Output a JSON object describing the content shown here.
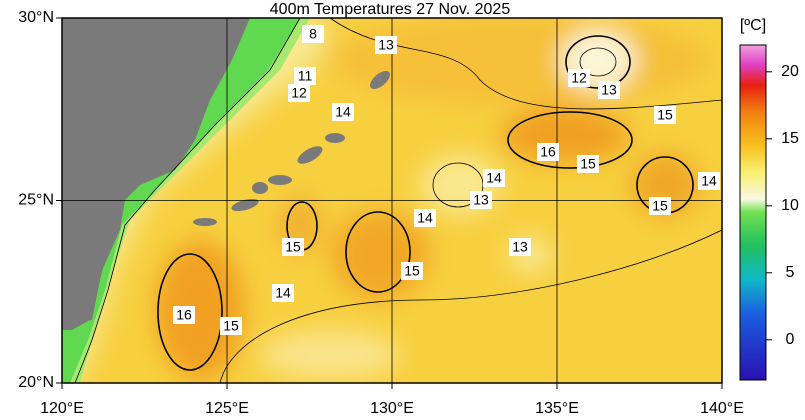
{
  "title": "400m Temperatures  27 Nov. 2025",
  "map": {
    "lonlim": [
      120,
      140
    ],
    "latlim": [
      20,
      30
    ],
    "lonticks": [
      {
        "value": 120,
        "label": "120°E"
      },
      {
        "value": 125,
        "label": "125°E"
      },
      {
        "value": 130,
        "label": "130°E"
      },
      {
        "value": 135,
        "label": "135°E"
      },
      {
        "value": 140,
        "label": "140°E"
      }
    ],
    "latticks": [
      {
        "value": 20,
        "label": "20°N"
      },
      {
        "value": 25,
        "label": "25°N"
      },
      {
        "value": 30,
        "label": "30°N"
      }
    ],
    "contour_labels": [
      8,
      13,
      11,
      12,
      14,
      12,
      13,
      15,
      16,
      15,
      14,
      13,
      14,
      15,
      14,
      15,
      13,
      15,
      14,
      16,
      15
    ]
  },
  "colorbar": {
    "unit": "[ºC]",
    "lim": [
      -3,
      22
    ],
    "ticks": [
      0,
      5,
      10,
      15,
      20
    ]
  }
}
